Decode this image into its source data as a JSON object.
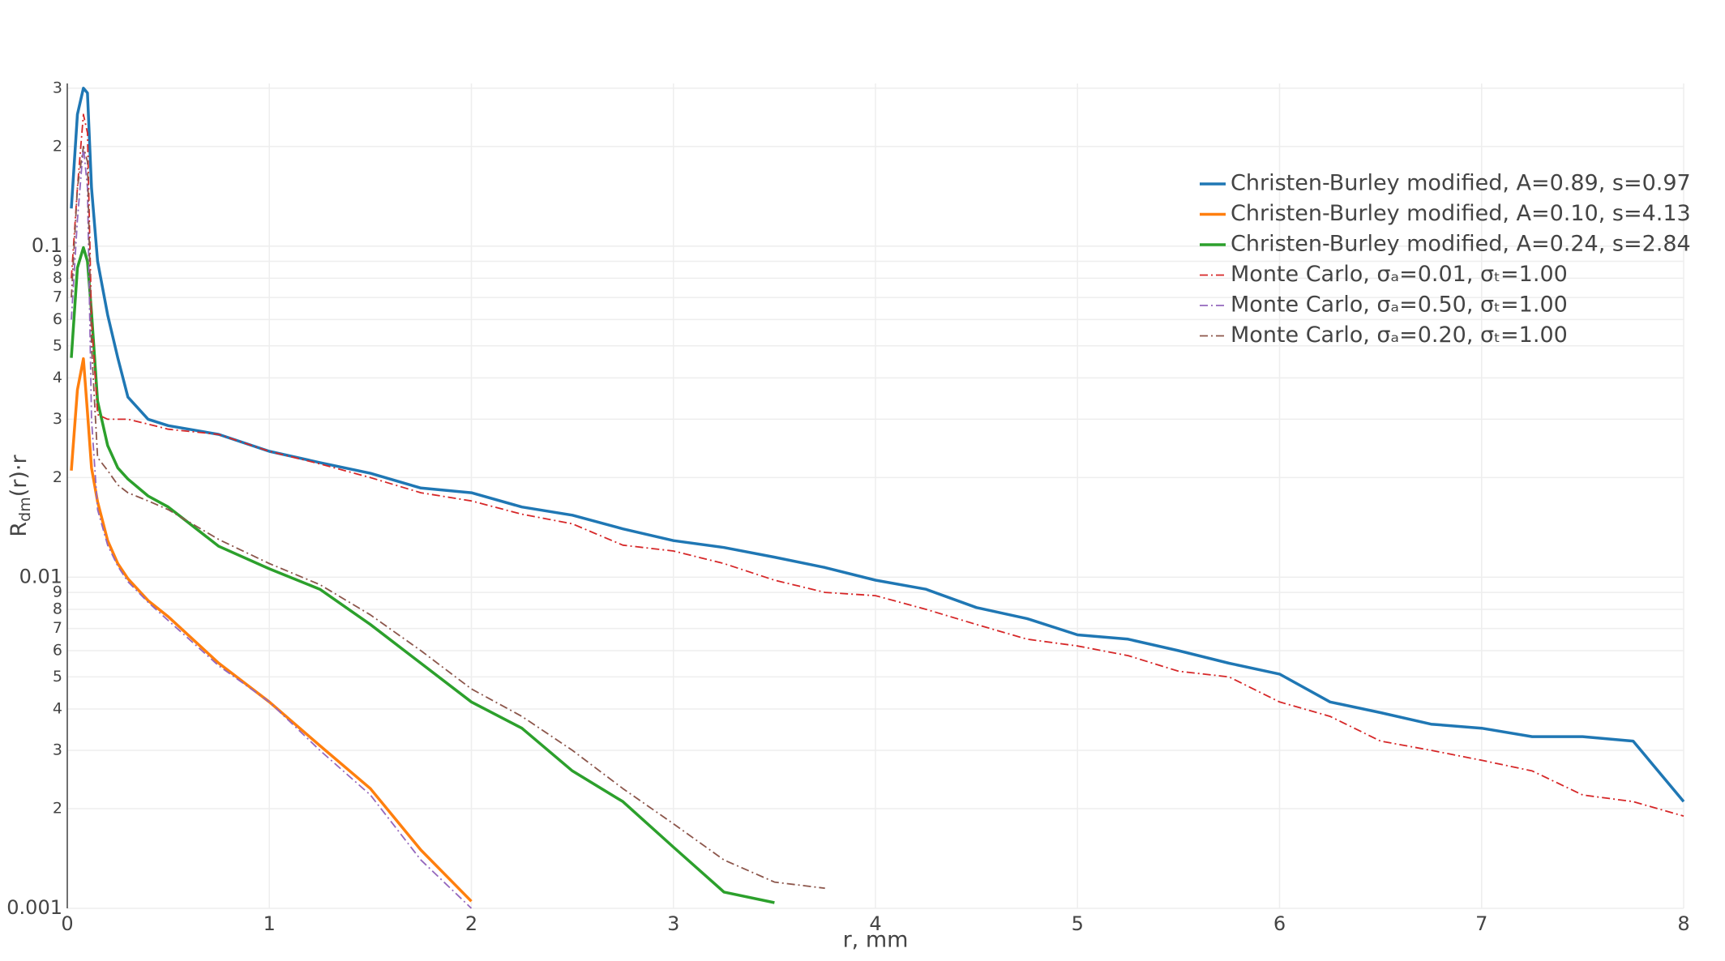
{
  "chart_data": {
    "type": "line",
    "log_y": true,
    "grid": true,
    "legend_position": "upper-right",
    "xlabel": "r, mm",
    "ylabel": {
      "base": "R",
      "sub": "dm",
      "rest": "(r)·r"
    },
    "xlim": [
      0,
      8
    ],
    "xticks": [
      0,
      1,
      2,
      3,
      4,
      5,
      6,
      7,
      8
    ],
    "ylim": [
      0.001,
      0.31
    ],
    "yticks": [
      0.001,
      {
        "value": 0.002,
        "label": "2"
      },
      {
        "value": 0.003,
        "label": "3"
      },
      {
        "value": 0.004,
        "label": "4"
      },
      {
        "value": 0.005,
        "label": "5"
      },
      {
        "value": 0.006,
        "label": "6"
      },
      {
        "value": 0.007,
        "label": "7"
      },
      {
        "value": 0.008,
        "label": "8"
      },
      {
        "value": 0.009,
        "label": "9"
      },
      0.01,
      {
        "value": 0.02,
        "label": "2"
      },
      {
        "value": 0.03,
        "label": "3"
      },
      {
        "value": 0.04,
        "label": "4"
      },
      {
        "value": 0.05,
        "label": "5"
      },
      {
        "value": 0.06,
        "label": "6"
      },
      {
        "value": 0.07,
        "label": "7"
      },
      {
        "value": 0.08,
        "label": "8"
      },
      {
        "value": 0.09,
        "label": "9"
      },
      0.1,
      {
        "value": 0.2,
        "label": "2"
      },
      {
        "value": 0.3,
        "label": "3"
      }
    ],
    "x": [
      0.02,
      0.05,
      0.08,
      0.1,
      0.12,
      0.15,
      0.2,
      0.25,
      0.3,
      0.4,
      0.5,
      0.75,
      1.0,
      1.25,
      1.5,
      1.75,
      2.0,
      2.25,
      2.5,
      2.75,
      3.0,
      3.25,
      3.5,
      3.75,
      4.0,
      4.25,
      4.5,
      4.75,
      5.0,
      5.25,
      5.5,
      5.75,
      6.0,
      6.25,
      6.5,
      6.75,
      7.0,
      7.25,
      7.5,
      7.75,
      8.0
    ],
    "series": [
      {
        "name": "Christen-Burley modified, A=0.89, s=0.97",
        "color": "#1f77b4",
        "dash": "solid",
        "values": [
          0.13,
          0.25,
          0.3,
          0.29,
          0.15,
          0.09,
          0.062,
          0.046,
          0.035,
          0.03,
          0.0287,
          0.027,
          0.024,
          0.0222,
          0.0206,
          0.0186,
          0.018,
          0.0163,
          0.0154,
          0.014,
          0.0129,
          0.0123,
          0.0115,
          0.0107,
          0.0098,
          0.0092,
          0.0081,
          0.0075,
          0.0067,
          0.0065,
          0.006,
          0.0055,
          0.0051,
          0.0042,
          0.0039,
          0.0036,
          0.0035,
          0.0033,
          0.0033,
          0.0032,
          0.0021
        ]
      },
      {
        "name": "Christen-Burley modified, A=0.10, s=4.13",
        "color": "#ff7f0e",
        "dash": "solid",
        "values": [
          0.021,
          0.0368,
          0.0457,
          0.0315,
          0.0214,
          0.0169,
          0.0129,
          0.011,
          0.0099,
          0.0085,
          0.0076,
          0.0055,
          0.0042,
          0.0031,
          0.0023,
          0.0015,
          0.00105,
          null,
          null,
          null,
          null,
          null,
          null,
          null,
          null,
          null,
          null,
          null,
          null,
          null,
          null,
          null,
          null,
          null,
          null,
          null,
          null,
          null,
          null,
          null,
          null
        ]
      },
      {
        "name": "Christen-Burley modified, A=0.24, s=2.84",
        "color": "#2ca02c",
        "dash": "solid",
        "values": [
          0.046,
          0.086,
          0.099,
          0.09,
          0.063,
          0.034,
          0.025,
          0.0214,
          0.0198,
          0.0176,
          0.0163,
          0.0124,
          0.0106,
          0.0092,
          0.0072,
          0.0055,
          0.0042,
          0.0035,
          0.0026,
          0.0021,
          0.00153,
          0.00112,
          0.00104,
          null,
          null,
          null,
          null,
          null,
          null,
          null,
          null,
          null,
          null,
          null,
          null,
          null,
          null,
          null,
          null,
          null,
          null
        ]
      },
      {
        "name": "Monte Carlo, σₐ=0.01, σₜ=1.00",
        "color": "#d62728",
        "dash": "dashdot",
        "values": [
          0.08,
          0.15,
          0.25,
          0.22,
          0.06,
          0.031,
          0.03,
          0.03,
          0.03,
          0.029,
          0.028,
          0.027,
          0.024,
          0.022,
          0.02,
          0.018,
          0.017,
          0.0155,
          0.0145,
          0.0125,
          0.012,
          0.011,
          0.0098,
          0.009,
          0.0088,
          0.008,
          0.0072,
          0.0065,
          0.0062,
          0.0058,
          0.0052,
          0.005,
          0.0042,
          0.0038,
          0.0032,
          0.003,
          0.0028,
          0.0026,
          0.0022,
          0.0021,
          0.0019
        ]
      },
      {
        "name": "Monte Carlo, σₐ=0.50, σₜ=1.00",
        "color": "#9467bd",
        "dash": "dashdot",
        "values": [
          0.06,
          0.12,
          0.2,
          0.15,
          0.03,
          0.016,
          0.0125,
          0.0108,
          0.0097,
          0.0084,
          0.0074,
          0.0054,
          0.0042,
          0.003,
          0.0022,
          0.0014,
          0.001,
          null,
          null,
          null,
          null,
          null,
          null,
          null,
          null,
          null,
          null,
          null,
          null,
          null,
          null,
          null,
          null,
          null,
          null,
          null,
          null,
          null,
          null,
          null,
          null
        ]
      },
      {
        "name": "Monte Carlo, σₐ=0.20, σₜ=1.00",
        "color": "#8c564b",
        "dash": "dashdot",
        "values": [
          0.07,
          0.15,
          0.2,
          0.18,
          0.05,
          0.023,
          0.021,
          0.019,
          0.018,
          0.017,
          0.016,
          0.013,
          0.011,
          0.0095,
          0.0077,
          0.006,
          0.0046,
          0.0038,
          0.003,
          0.0023,
          0.0018,
          0.0014,
          0.0012,
          0.00115,
          null,
          null,
          null,
          null,
          null,
          null,
          null,
          null,
          null,
          null,
          null,
          null,
          null,
          null,
          null,
          null,
          null
        ]
      }
    ]
  }
}
